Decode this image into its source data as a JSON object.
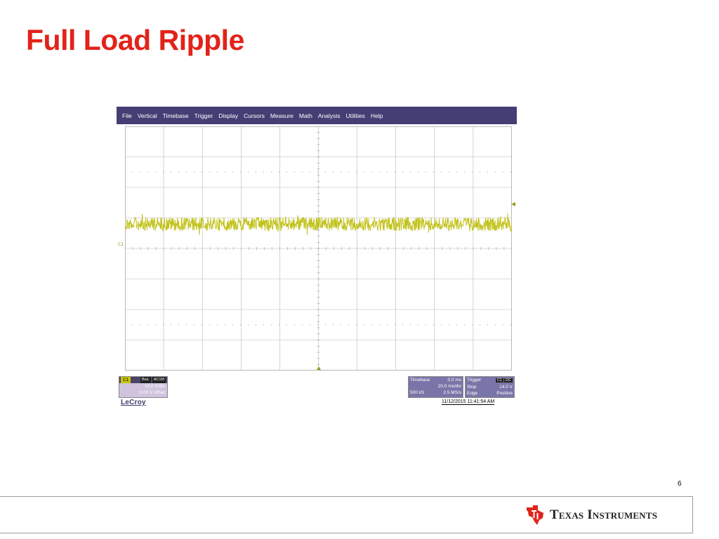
{
  "slide": {
    "title": "Full Load Ripple",
    "page_number": "6",
    "company": "Texas Instruments"
  },
  "scope": {
    "menu": [
      "File",
      "Vertical",
      "Timebase",
      "Trigger",
      "Display",
      "Cursors",
      "Measure",
      "Math",
      "Analysis",
      "Utilities",
      "Help"
    ],
    "channel_marker": "C1",
    "channel": {
      "label": "C1",
      "tag1": "BwL",
      "tag2": "AC1M",
      "vdiv": "10.0 V/div",
      "offset": "0.00 V offset"
    },
    "timebase": {
      "label": "Timebase",
      "delay": "0.0 ms",
      "tdiv": "20.0 ms/div",
      "samples": "500 kS",
      "rate": "2.5 MS/s"
    },
    "trigger": {
      "label": "Trigger",
      "tag1": "C1",
      "tag2": "DC",
      "mode": "Stop",
      "level": "14.0 V",
      "type": "Edge",
      "slope": "Positive"
    },
    "brand": "LeCroy",
    "timestamp": "11/12/2015 11:41:54 AM",
    "colors": {
      "trace": "#c2c21c",
      "menubar": "#443e74",
      "grid": "#b8b8b8"
    },
    "waveform": {
      "divisions_x": 10,
      "divisions_y": 8,
      "level_div": 3.2,
      "noise_peak_div": 0.3
    }
  }
}
